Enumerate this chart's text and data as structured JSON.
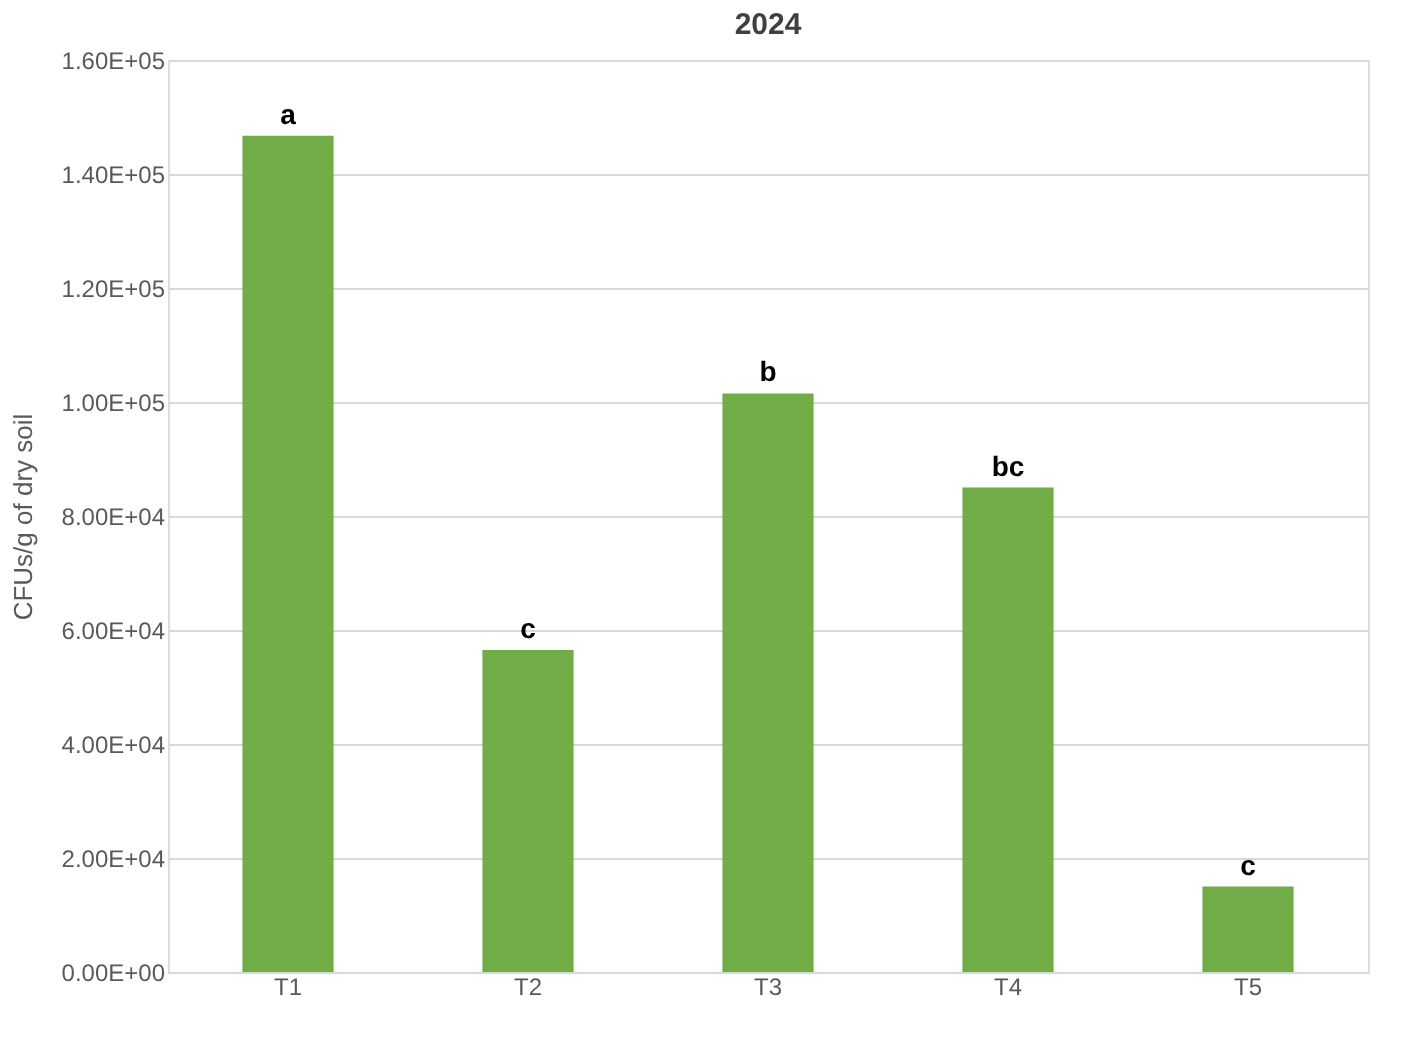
{
  "chart_data": {
    "type": "bar",
    "title": "2024",
    "ylabel": "CFUs/g of dry soil",
    "categories": [
      "T1",
      "T2",
      "T3",
      "T4",
      "T5"
    ],
    "values": [
      146700,
      56500,
      101500,
      85000,
      15000
    ],
    "color": "#70ad47",
    "ylim": [
      0,
      160000
    ],
    "yticks": [
      {
        "value": 0,
        "label": "0.00E+00"
      },
      {
        "value": 20000,
        "label": "2.00E+04"
      },
      {
        "value": 40000,
        "label": "4.00E+04"
      },
      {
        "value": 60000,
        "label": "6.00E+04"
      },
      {
        "value": 80000,
        "label": "8.00E+04"
      },
      {
        "value": 100000,
        "label": "1.00E+05"
      },
      {
        "value": 120000,
        "label": "1.20E+05"
      },
      {
        "value": 140000,
        "label": "1.40E+05"
      },
      {
        "value": 160000,
        "label": "1.60E+05"
      }
    ],
    "grid": "y",
    "annotations": [
      {
        "text": "a",
        "x": "T1",
        "y": 146700
      },
      {
        "text": "c",
        "x": "T2",
        "y": 56500
      },
      {
        "text": "b",
        "x": "T3",
        "y": 101500
      },
      {
        "text": "bc",
        "x": "T4",
        "y": 85000
      },
      {
        "text": "c",
        "x": "T5",
        "y": 15000
      }
    ]
  }
}
